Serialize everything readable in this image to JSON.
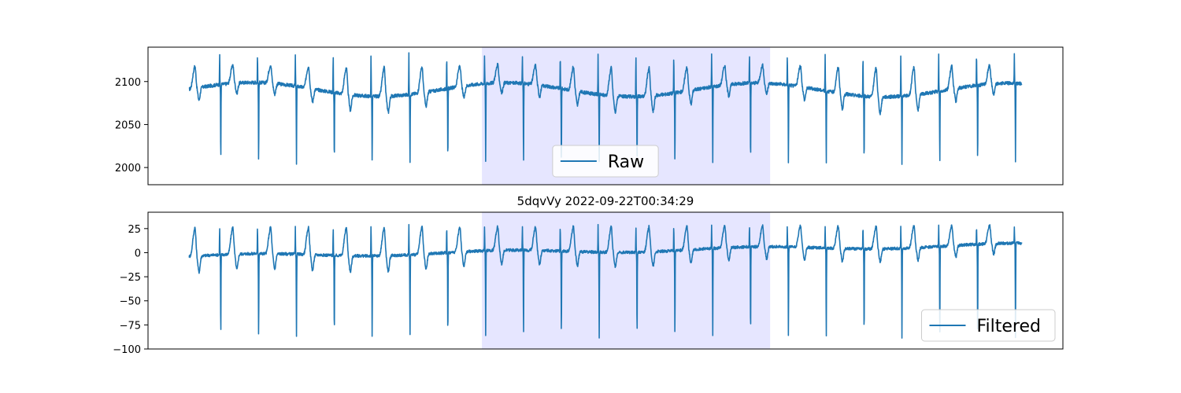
{
  "colors": {
    "series": "#1f77b4",
    "highlight": "#e6e6ff",
    "axis": "#000000",
    "legend_border": "#cccccc"
  },
  "chart_data": [
    {
      "type": "line",
      "title": "",
      "xlabel": "",
      "ylabel": "",
      "x_ticks_visible": false,
      "xlim": [
        0,
        1
      ],
      "ylim": [
        1980,
        2140
      ],
      "yticks": [
        2000,
        2050,
        2100
      ],
      "highlight_span": [
        0.365,
        0.68
      ],
      "legend": {
        "label": "Raw",
        "loc": "lower-center"
      },
      "beats": {
        "start": 0.045,
        "end": 0.955,
        "count": 22,
        "phase": 0.21,
        "baseline_start": 2091,
        "baseline_end": 2090,
        "baseline_wobble": 8,
        "r_peak": 2132,
        "t_peak": 2125,
        "q_trough": 2005,
        "noise": 2
      }
    },
    {
      "type": "line",
      "title": "5dqvVy 2022-09-22T00:34:29",
      "xlabel": "",
      "ylabel": "",
      "x_ticks_visible": false,
      "xlim": [
        0,
        1
      ],
      "ylim": [
        -100,
        42
      ],
      "yticks": [
        -100,
        -75,
        -50,
        -25,
        0,
        25
      ],
      "highlight_span": [
        0.365,
        0.68
      ],
      "legend": {
        "label": "Filtered",
        "loc": "lower-right"
      },
      "beats": {
        "start": 0.045,
        "end": 0.955,
        "count": 22,
        "phase": 0.21,
        "baseline_start": -4,
        "baseline_end": 8,
        "baseline_wobble": 2,
        "r_peak": 28,
        "t_peak": 34,
        "q_trough": -88,
        "noise": 1.5
      }
    }
  ]
}
